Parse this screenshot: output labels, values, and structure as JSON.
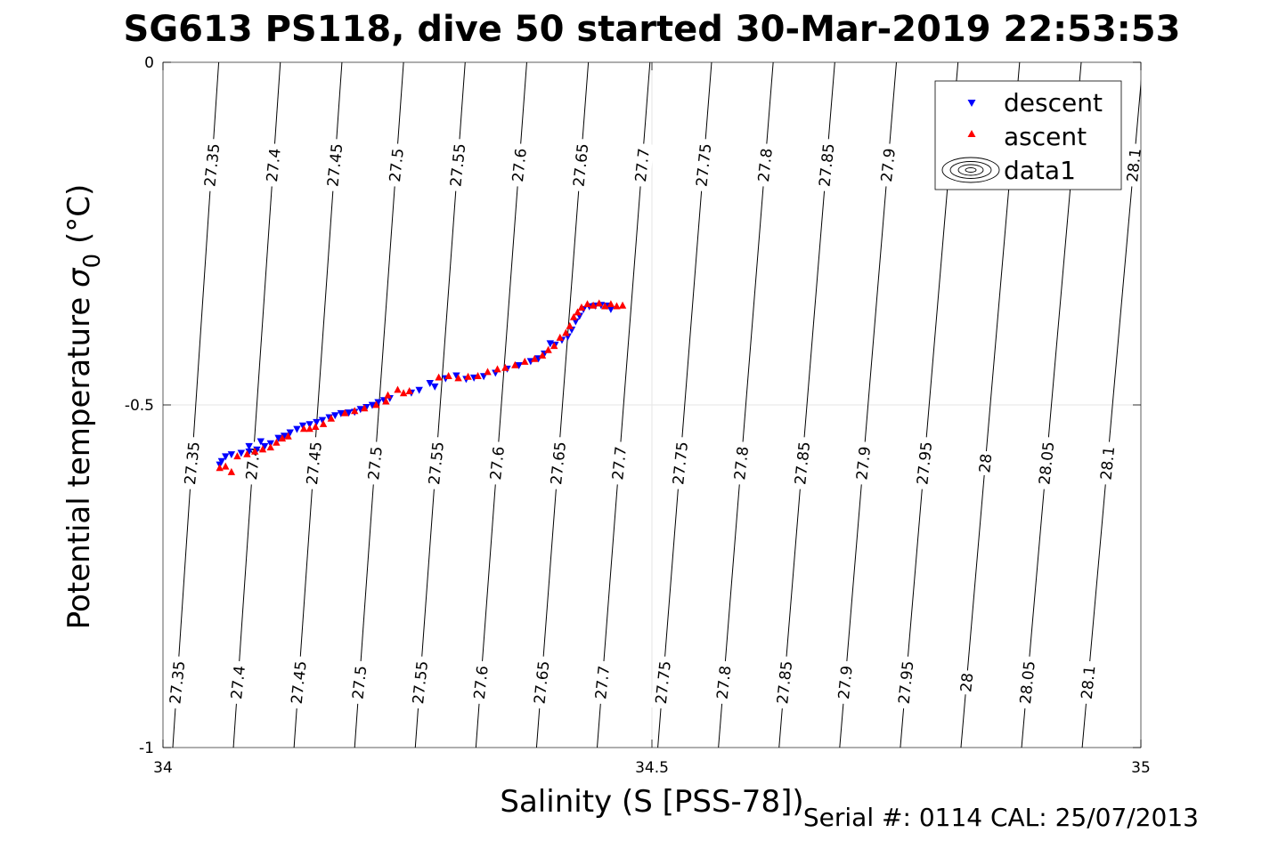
{
  "chart_data": {
    "type": "scatter",
    "title": "SG613 PS118, dive 50 started 30-Mar-2019 22:53:53",
    "xlabel": "Salinity (S [PSS-78])",
    "ylabel_main": "Potential temperature ",
    "ylabel_sym": "σ",
    "ylabel_sub": "0",
    "ylabel_unit": " (°C)",
    "xlim": [
      34,
      35
    ],
    "ylim": [
      -1,
      0
    ],
    "xticks": [
      34,
      34.5,
      35
    ],
    "xtick_labels": [
      "34",
      "34.5",
      "35"
    ],
    "yticks": [
      0,
      -0.5,
      -1
    ],
    "ytick_labels": [
      "0",
      "-0.5",
      "-1"
    ],
    "grid": true,
    "legend_position": "top-right",
    "legend": [
      {
        "label": "descent",
        "marker": "triangle-down",
        "color": "#0000ff"
      },
      {
        "label": "ascent",
        "marker": "triangle-up",
        "color": "#ff0000"
      },
      {
        "label": "data1",
        "marker": "contour",
        "color": "#000000"
      }
    ],
    "contours": {
      "levels": [
        "27.35",
        "27.4",
        "27.45",
        "27.5",
        "27.55",
        "27.6",
        "27.65",
        "27.7",
        "27.75",
        "27.8",
        "27.85",
        "27.9",
        "27.95",
        "28",
        "28.05",
        "28.1"
      ],
      "x_at_top": [
        34.057,
        34.12,
        34.183,
        34.246,
        34.309,
        34.372,
        34.435,
        34.498,
        34.561,
        34.624,
        34.687,
        34.75,
        34.813,
        34.876,
        34.939,
        35.002
      ],
      "x_at_bottom": [
        34.01,
        34.072,
        34.134,
        34.196,
        34.258,
        34.32,
        34.382,
        34.444,
        34.506,
        34.568,
        34.63,
        34.692,
        34.754,
        34.816,
        34.878,
        34.94
      ],
      "label_rows": [
        {
          "y": -0.15,
          "levels": [
            "27.35",
            "27.4",
            "27.45",
            "27.5",
            "27.55",
            "27.6",
            "27.65",
            "27.7",
            "27.75",
            "27.8",
            "27.85",
            "27.9",
            "28.1"
          ]
        },
        {
          "y": -0.585,
          "levels": [
            "27.35",
            "27.4",
            "27.45",
            "27.5",
            "27.55",
            "27.6",
            "27.65",
            "27.7",
            "27.75",
            "27.8",
            "27.85",
            "27.9",
            "27.95",
            "28",
            "28.05",
            "28.1"
          ]
        },
        {
          "y": -0.905,
          "levels": [
            "27.35",
            "27.4",
            "27.45",
            "27.5",
            "27.55",
            "27.6",
            "27.65",
            "27.7",
            "27.75",
            "27.8",
            "27.85",
            "27.9",
            "27.95",
            "28",
            "28.05",
            "28.1"
          ]
        }
      ]
    },
    "series": [
      {
        "name": "descent",
        "color": "#0000ff",
        "marker": "triangle-down",
        "points": [
          [
            34.058,
            -0.587
          ],
          [
            34.06,
            -0.582
          ],
          [
            34.064,
            -0.575
          ],
          [
            34.07,
            -0.572
          ],
          [
            34.08,
            -0.57
          ],
          [
            34.088,
            -0.568
          ],
          [
            34.096,
            -0.565
          ],
          [
            34.104,
            -0.56
          ],
          [
            34.11,
            -0.556
          ],
          [
            34.118,
            -0.548
          ],
          [
            34.124,
            -0.545
          ],
          [
            34.13,
            -0.54
          ],
          [
            34.137,
            -0.535
          ],
          [
            34.143,
            -0.53
          ],
          [
            34.15,
            -0.528
          ],
          [
            34.157,
            -0.525
          ],
          [
            34.163,
            -0.522
          ],
          [
            34.17,
            -0.518
          ],
          [
            34.176,
            -0.515
          ],
          [
            34.182,
            -0.512
          ],
          [
            34.19,
            -0.511
          ],
          [
            34.196,
            -0.51
          ],
          [
            34.202,
            -0.506
          ],
          [
            34.208,
            -0.503
          ],
          [
            34.214,
            -0.5
          ],
          [
            34.22,
            -0.496
          ],
          [
            34.226,
            -0.493
          ],
          [
            34.232,
            -0.49
          ],
          [
            34.254,
            -0.482
          ],
          [
            34.262,
            -0.478
          ],
          [
            34.273,
            -0.468
          ],
          [
            34.278,
            -0.473
          ],
          [
            34.289,
            -0.461
          ],
          [
            34.3,
            -0.457
          ],
          [
            34.31,
            -0.462
          ],
          [
            34.318,
            -0.46
          ],
          [
            34.328,
            -0.458
          ],
          [
            34.34,
            -0.453
          ],
          [
            34.352,
            -0.447
          ],
          [
            34.364,
            -0.442
          ],
          [
            34.376,
            -0.436
          ],
          [
            34.384,
            -0.432
          ],
          [
            34.39,
            -0.425
          ],
          [
            34.396,
            -0.41
          ],
          [
            34.401,
            -0.412
          ],
          [
            34.408,
            -0.405
          ],
          [
            34.414,
            -0.4
          ],
          [
            34.418,
            -0.39
          ],
          [
            34.422,
            -0.378
          ],
          [
            34.426,
            -0.37
          ],
          [
            34.43,
            -0.36
          ],
          [
            34.436,
            -0.356
          ],
          [
            34.442,
            -0.355
          ],
          [
            34.448,
            -0.354
          ],
          [
            34.454,
            -0.355
          ],
          [
            34.458,
            -0.36
          ],
          [
            34.088,
            -0.56
          ],
          [
            34.1,
            -0.553
          ]
        ]
      },
      {
        "name": "ascent",
        "color": "#ff0000",
        "marker": "triangle-up",
        "points": [
          [
            34.058,
            -0.592
          ],
          [
            34.064,
            -0.59
          ],
          [
            34.07,
            -0.598
          ],
          [
            34.076,
            -0.575
          ],
          [
            34.086,
            -0.572
          ],
          [
            34.094,
            -0.568
          ],
          [
            34.102,
            -0.565
          ],
          [
            34.11,
            -0.562
          ],
          [
            34.116,
            -0.555
          ],
          [
            34.122,
            -0.549
          ],
          [
            34.128,
            -0.546
          ],
          [
            34.144,
            -0.535
          ],
          [
            34.15,
            -0.535
          ],
          [
            34.156,
            -0.532
          ],
          [
            34.164,
            -0.528
          ],
          [
            34.172,
            -0.52
          ],
          [
            34.186,
            -0.512
          ],
          [
            34.196,
            -0.509
          ],
          [
            34.206,
            -0.505
          ],
          [
            34.218,
            -0.5
          ],
          [
            34.228,
            -0.495
          ],
          [
            34.23,
            -0.486
          ],
          [
            34.24,
            -0.478
          ],
          [
            34.246,
            -0.483
          ],
          [
            34.252,
            -0.48
          ],
          [
            34.282,
            -0.46
          ],
          [
            34.292,
            -0.458
          ],
          [
            34.302,
            -0.461
          ],
          [
            34.312,
            -0.459
          ],
          [
            34.322,
            -0.458
          ],
          [
            34.332,
            -0.452
          ],
          [
            34.342,
            -0.448
          ],
          [
            34.35,
            -0.446
          ],
          [
            34.36,
            -0.442
          ],
          [
            34.37,
            -0.437
          ],
          [
            34.38,
            -0.433
          ],
          [
            34.388,
            -0.428
          ],
          [
            34.394,
            -0.42
          ],
          [
            34.4,
            -0.414
          ],
          [
            34.406,
            -0.402
          ],
          [
            34.412,
            -0.395
          ],
          [
            34.416,
            -0.385
          ],
          [
            34.42,
            -0.372
          ],
          [
            34.424,
            -0.365
          ],
          [
            34.428,
            -0.358
          ],
          [
            34.434,
            -0.353
          ],
          [
            34.44,
            -0.355
          ],
          [
            34.446,
            -0.352
          ],
          [
            34.452,
            -0.356
          ],
          [
            34.458,
            -0.353
          ],
          [
            34.464,
            -0.356
          ],
          [
            34.47,
            -0.355
          ]
        ]
      }
    ]
  },
  "footer": "Serial #: 0114  CAL: 25/07/2013"
}
